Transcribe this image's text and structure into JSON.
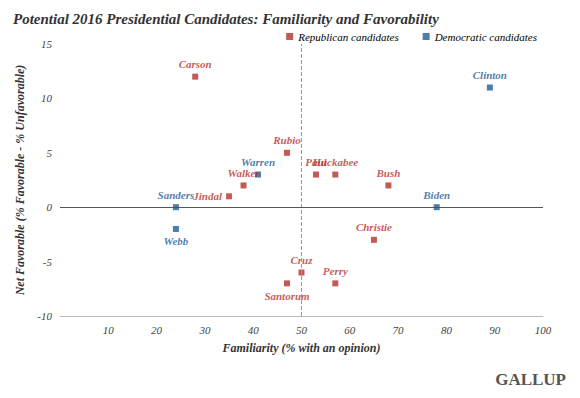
{
  "chart_data": {
    "type": "scatter",
    "title": "Potential 2016 Presidential Candidates: Familiarity and Favorability",
    "x_label": "Familiarity (% with an opinion)",
    "y_label": "Net Favorable (% Favorable - % Unfavorable)",
    "xlim": [
      0,
      100
    ],
    "xticks": [
      10,
      20,
      30,
      40,
      50,
      60,
      70,
      80,
      90,
      100
    ],
    "ylim": [
      -10,
      15
    ],
    "yticks": [
      -10,
      -5,
      0,
      5,
      10,
      15
    ],
    "grid": false,
    "legend": "top",
    "marker": "square",
    "reference_lines": [
      {
        "x": 50,
        "line_style": "dashed"
      },
      {
        "y": 0,
        "line_style": "solid"
      }
    ],
    "logo": "GALLUP",
    "series": [
      {
        "name": "Republican candidates",
        "color": "#b5312c",
        "labels": [
          "Carson",
          "Rubio",
          "Walker",
          "Jindal",
          "Paul",
          "Huckabee",
          "Bush",
          "Christie",
          "Cruz",
          "Santorum",
          "Perry"
        ],
        "x": [
          28,
          47,
          38,
          35,
          53,
          57,
          68,
          65,
          50,
          47,
          57
        ],
        "values": [
          12,
          5,
          2,
          1,
          3,
          3,
          2,
          -3,
          -6,
          -7,
          -7
        ]
      },
      {
        "name": "Democratic candidates",
        "color": "#1f5c99",
        "labels": [
          "Clinton",
          "Warren",
          "Sanders",
          "Webb",
          "Biden"
        ],
        "x": [
          89,
          41,
          24,
          24,
          78
        ],
        "values": [
          11,
          3,
          0,
          -2,
          0
        ]
      }
    ]
  }
}
